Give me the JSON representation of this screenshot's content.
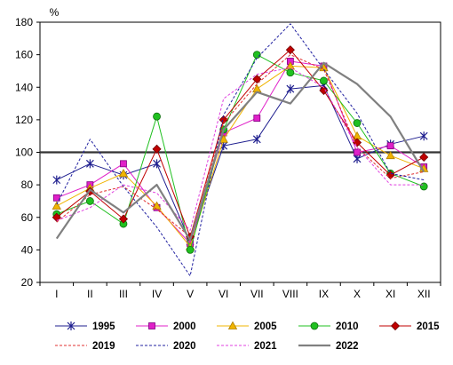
{
  "chart_data": {
    "type": "line",
    "yunit": "%",
    "ylim": [
      20,
      180
    ],
    "yticks": [
      20,
      40,
      60,
      80,
      100,
      120,
      140,
      160,
      180
    ],
    "categories": [
      "I",
      "II",
      "III",
      "IV",
      "V",
      "VI",
      "VII",
      "VIII",
      "IX",
      "X",
      "XI",
      "XII"
    ],
    "reference_line": 100,
    "grid": false,
    "legend_position": "bottom",
    "series": [
      {
        "name": "1995",
        "color": "#1f1f8f",
        "dash": "solid",
        "marker": "star",
        "values": [
          83,
          93,
          86,
          93,
          45,
          104,
          108,
          139,
          141,
          96,
          105,
          110
        ]
      },
      {
        "name": "2000",
        "color": "#e020c8",
        "dash": "solid",
        "marker": "square",
        "values": [
          72,
          80,
          93,
          66,
          44,
          112,
          121,
          156,
          153,
          100,
          104,
          91
        ]
      },
      {
        "name": "2005",
        "color": "#f0b400",
        "dash": "solid",
        "marker": "triangle",
        "values": [
          67,
          78,
          87,
          67,
          42,
          108,
          139,
          153,
          152,
          110,
          98,
          90
        ]
      },
      {
        "name": "2010",
        "color": "#20c020",
        "dash": "solid",
        "marker": "circle",
        "values": [
          62,
          70,
          56,
          122,
          40,
          114,
          160,
          149,
          144,
          118,
          87,
          79
        ]
      },
      {
        "name": "2015",
        "color": "#c00000",
        "dash": "solid",
        "marker": "diamond",
        "values": [
          60,
          76,
          59,
          102,
          48,
          120,
          145,
          163,
          138,
          106,
          86,
          97
        ]
      },
      {
        "name": "2019",
        "color": "#e03030",
        "dash": "dashed",
        "marker": "none",
        "values": [
          57,
          74,
          79,
          65,
          48,
          118,
          142,
          160,
          151,
          103,
          84,
          88
        ]
      },
      {
        "name": "2020",
        "color": "#2020a0",
        "dash": "dashed",
        "marker": "none",
        "values": [
          68,
          108,
          79,
          54,
          24,
          123,
          158,
          179,
          151,
          124,
          87,
          83
        ]
      },
      {
        "name": "2021",
        "color": "#e040e0",
        "dash": "dashed",
        "marker": "none",
        "values": [
          58,
          66,
          80,
          75,
          52,
          133,
          148,
          152,
          140,
          103,
          80,
          80
        ]
      },
      {
        "name": "2022",
        "color": "#808080",
        "dash": "solid",
        "marker": "none",
        "values": [
          47,
          77,
          63,
          80,
          46,
          114,
          137,
          130,
          155,
          142,
          122,
          88
        ]
      }
    ]
  }
}
